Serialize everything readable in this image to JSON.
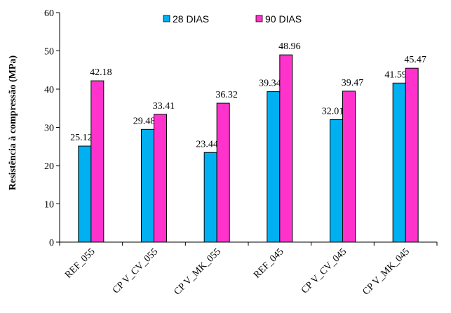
{
  "chart_data": {
    "type": "bar",
    "categories": [
      "REF_055",
      "CP V_CV_055",
      "CP V_MK_055",
      "REF_045",
      "CP V_CV_045",
      "CP V_MK_045"
    ],
    "series": [
      {
        "name": "28 DIAS",
        "color": "#00B0F0",
        "values": [
          25.12,
          29.48,
          23.44,
          39.34,
          32.01,
          41.59
        ]
      },
      {
        "name": "90 DIAS",
        "color": "#FF33CC",
        "values": [
          42.18,
          33.41,
          36.32,
          48.96,
          39.47,
          45.47
        ]
      }
    ],
    "ylabel": "Resistência à compressão (MPa)",
    "xlabel": "",
    "ylim": [
      0,
      60
    ],
    "yticks": [
      0,
      10,
      20,
      30,
      40,
      50,
      60
    ],
    "grid": false,
    "legend": "top"
  }
}
